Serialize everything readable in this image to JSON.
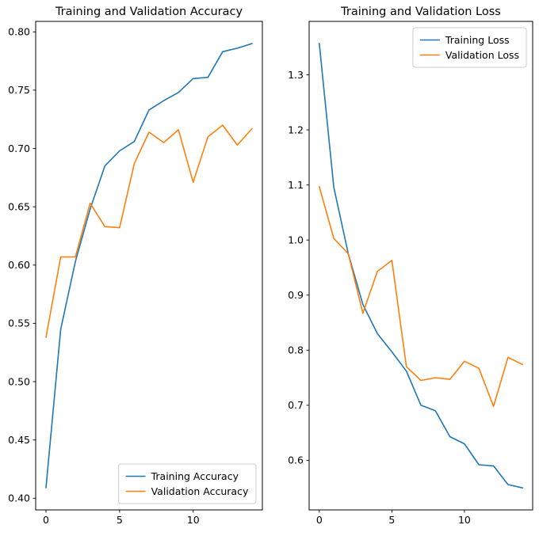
{
  "figure": {
    "background": "#ffffff",
    "axis_color": "#000000",
    "legend_frame_color": "#cccccc"
  },
  "chart_data": [
    {
      "type": "line",
      "title": "Training and Validation Accuracy",
      "xlabel": "",
      "ylabel": "",
      "grid": false,
      "legend_position": "lower right",
      "x": [
        0,
        1,
        2,
        3,
        4,
        5,
        6,
        7,
        8,
        9,
        10,
        11,
        12,
        13,
        14
      ],
      "xlim": [
        -0.7,
        14.7
      ],
      "ylim": [
        0.39,
        0.809
      ],
      "xticks": [
        0,
        5,
        10
      ],
      "xticklabels": [
        "0",
        "5",
        "10"
      ],
      "yticks": [
        0.4,
        0.45,
        0.5,
        0.55,
        0.6,
        0.65,
        0.7,
        0.75,
        0.8
      ],
      "yticklabels": [
        "0.40",
        "0.45",
        "0.50",
        "0.55",
        "0.60",
        "0.65",
        "0.70",
        "0.75",
        "0.80"
      ],
      "series": [
        {
          "name": "Training Accuracy",
          "color": "#1f77b4",
          "values": [
            0.409,
            0.545,
            0.603,
            0.648,
            0.685,
            0.698,
            0.706,
            0.733,
            0.741,
            0.748,
            0.76,
            0.761,
            0.783,
            0.786,
            0.79
          ]
        },
        {
          "name": "Validation Accuracy",
          "color": "#ff7f0e",
          "values": [
            0.538,
            0.607,
            0.607,
            0.653,
            0.633,
            0.632,
            0.687,
            0.714,
            0.705,
            0.716,
            0.671,
            0.71,
            0.72,
            0.703,
            0.717
          ]
        }
      ]
    },
    {
      "type": "line",
      "title": "Training and Validation Loss",
      "xlabel": "",
      "ylabel": "",
      "grid": false,
      "legend_position": "upper right",
      "x": [
        0,
        1,
        2,
        3,
        4,
        5,
        6,
        7,
        8,
        9,
        10,
        11,
        12,
        13,
        14
      ],
      "xlim": [
        -0.7,
        14.7
      ],
      "ylim": [
        0.51,
        1.397
      ],
      "xticks": [
        0,
        5,
        10
      ],
      "xticklabels": [
        "0",
        "5",
        "10"
      ],
      "yticks": [
        0.6,
        0.7,
        0.8,
        0.9,
        1.0,
        1.1,
        1.2,
        1.3
      ],
      "yticklabels": [
        "0.6",
        "0.7",
        "0.8",
        "0.9",
        "1.0",
        "1.1",
        "1.2",
        "1.3"
      ],
      "series": [
        {
          "name": "Training Loss",
          "color": "#1f77b4",
          "values": [
            1.357,
            1.096,
            0.975,
            0.883,
            0.83,
            0.797,
            0.762,
            0.7,
            0.69,
            0.643,
            0.63,
            0.592,
            0.59,
            0.556,
            0.55
          ]
        },
        {
          "name": "Validation Loss",
          "color": "#ff7f0e",
          "values": [
            1.097,
            1.003,
            0.975,
            0.867,
            0.943,
            0.963,
            0.77,
            0.745,
            0.75,
            0.747,
            0.78,
            0.767,
            0.698,
            0.787,
            0.774
          ]
        }
      ]
    }
  ]
}
